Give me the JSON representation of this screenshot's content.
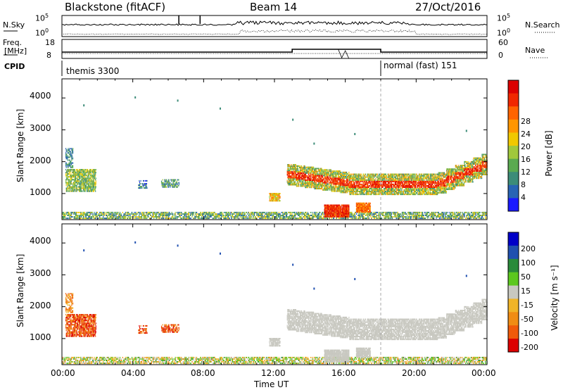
{
  "header": {
    "radar": "Blackstone (fitACF)",
    "beam": "Beam 14",
    "date": "27/Oct/2016"
  },
  "params": {
    "nsky_label": "N.Sky",
    "nsearch_label": "N.Search",
    "freq_label_1": "Freq.",
    "freq_label_2": "[MHz]",
    "nave_label": "Nave",
    "cpid_label": "CPID",
    "noise_top_tick": "10^5",
    "noise_bottom_tick": "10^0",
    "freq_top_tick": "18",
    "freq_bottom_tick": "8",
    "nave_top_tick": "60",
    "nave_bottom_tick": "0",
    "cpid_programs": [
      {
        "name": "themis 3300",
        "start_hour": 0.0
      },
      {
        "name": "normal (fast) 151",
        "start_hour": 18.0
      }
    ]
  },
  "colors": {
    "power": [
      "#1a1aff",
      "#2864b4",
      "#3c8c78",
      "#5aaa50",
      "#a0c83c",
      "#f0c800",
      "#ff9600",
      "#ff6400",
      "#f02800",
      "#dc0000"
    ],
    "velocity": [
      "#0000c8",
      "#2050b0",
      "#2a8a3a",
      "#5cc81e",
      "#c8c8c0",
      "#f0b428",
      "#f08c14",
      "#f05a0a",
      "#dc0000"
    ]
  },
  "chart_data": [
    {
      "type": "heatmap",
      "panel": "power",
      "xlabel": "",
      "ylabel": "Slant Range [km]",
      "xlim": [
        0,
        24
      ],
      "ylim": [
        180,
        4600
      ],
      "yticks": [
        "1000",
        "2000",
        "3000",
        "4000"
      ],
      "colorbar": {
        "label": "Power [dB]",
        "ticks": [
          "4",
          "8",
          "12",
          "16",
          "20",
          "24",
          "28"
        ],
        "range": [
          0,
          30
        ]
      },
      "features": [
        {
          "hours": [
            0.2,
            2.0
          ],
          "range_km": [
            1000,
            2400
          ],
          "level": "12-18 dB"
        },
        {
          "hours": [
            4.0,
            7.0
          ],
          "range_km": [
            1100,
            1450
          ],
          "level": "4-12 dB"
        },
        {
          "hours": [
            11.7,
            12.4
          ],
          "range_km": [
            750,
            1000
          ],
          "level": "18-24 dB"
        },
        {
          "hours": [
            12.7,
            24.0
          ],
          "range_km": [
            1000,
            2100
          ],
          "level": "20-30 dB"
        },
        {
          "hours": [
            14.8,
            17.3
          ],
          "range_km": [
            250,
            700
          ],
          "level": "24-30 dB"
        },
        {
          "hours": [
            0.0,
            24.0
          ],
          "range_km": [
            200,
            450
          ],
          "level": "8-20 dB"
        }
      ]
    },
    {
      "type": "heatmap",
      "panel": "velocity",
      "xlabel": "Time UT",
      "ylabel": "Slant Range [km]",
      "xlim": [
        0,
        24
      ],
      "ylim": [
        180,
        4600
      ],
      "xticks": [
        "00:00",
        "04:00",
        "08:00",
        "12:00",
        "16:00",
        "20:00",
        "00:00"
      ],
      "yticks": [
        "1000",
        "2000",
        "3000",
        "4000"
      ],
      "colorbar": {
        "label": "Velocity [m s⁻¹]",
        "ticks": [
          "200",
          "100",
          "50",
          "15",
          "-15",
          "-50",
          "-100",
          "-200"
        ],
        "range": [
          -250,
          250
        ]
      },
      "features": [
        {
          "hours": [
            0.2,
            2.0
          ],
          "range_km": [
            1000,
            2100
          ],
          "velocity_m_s": [
            -200,
            -50
          ]
        },
        {
          "hours": [
            4.0,
            7.0
          ],
          "range_km": [
            1200,
            1450
          ],
          "velocity_m_s": [
            -150,
            -50
          ]
        },
        {
          "hours": [
            11.7,
            24.0
          ],
          "range_km": [
            600,
            2100
          ],
          "velocity_m_s": [
            -15,
            15
          ]
        },
        {
          "hours": [
            0.0,
            24.0
          ],
          "range_km": [
            200,
            450
          ],
          "velocity_m_s": [
            -50,
            50
          ]
        }
      ]
    }
  ]
}
